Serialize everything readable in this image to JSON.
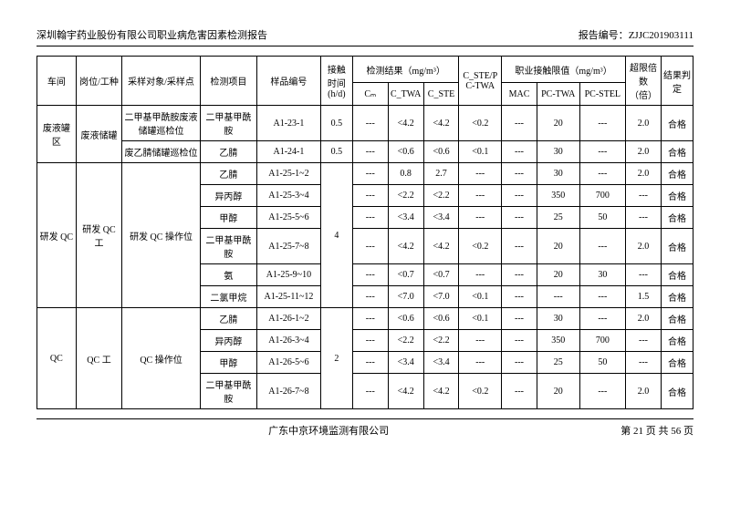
{
  "header": {
    "title": "深圳翰宇药业股份有限公司职业病危害因素检测报告",
    "report_no_label": "报告编号：",
    "report_no": "ZJJC201903111"
  },
  "footer": {
    "center": "广东中京环境监测有限公司",
    "right": "第 21 页 共 56 页"
  },
  "columns": {
    "c1": "车间",
    "c2": "岗位/工种",
    "c3": "采样对象/采样点",
    "c4": "检测项目",
    "c5": "样品编号",
    "c6": "接触时间(h/d)",
    "g1": "检测结果（mg/m³）",
    "g1a": "Cₘ",
    "g1b": "C_TWA",
    "g1c": "C_STE",
    "c8": "C_STE/PC-TWA",
    "g2": "职业接触限值（mg/m³）",
    "g2a": "MAC",
    "g2b": "PC-TWA",
    "g2c": "PC-STEL",
    "c10": "超限倍数（倍）",
    "c11": "结果判定"
  },
  "groups": [
    {
      "workshop": "废液罐区",
      "post": "废液储罐",
      "rows": [
        {
          "obj": "二甲基甲酰胺废液储罐巡检位",
          "item": "二甲基甲酰胺",
          "code": "A1-23-1",
          "time": "0.5",
          "cm": "---",
          "ctwa": "<4.2",
          "cste": "<4.2",
          "ratio": "<0.2",
          "mac": "---",
          "pctwa": "20",
          "pcstel": "---",
          "mult": "2.0",
          "res": "合格"
        },
        {
          "obj": "废乙腈储罐巡检位",
          "item": "乙腈",
          "code": "A1-24-1",
          "time": "0.5",
          "cm": "---",
          "ctwa": "<0.6",
          "cste": "<0.6",
          "ratio": "<0.1",
          "mac": "---",
          "pctwa": "30",
          "pcstel": "---",
          "mult": "2.0",
          "res": "合格"
        }
      ]
    },
    {
      "workshop": "研发 QC",
      "post": "研发 QC 工",
      "obj": "研发 QC 操作位",
      "time": "4",
      "rows": [
        {
          "item": "乙腈",
          "code": "A1-25-1~2",
          "cm": "---",
          "ctwa": "0.8",
          "cste": "2.7",
          "ratio": "---",
          "mac": "---",
          "pctwa": "30",
          "pcstel": "---",
          "mult": "2.0",
          "res": "合格"
        },
        {
          "item": "异丙醇",
          "code": "A1-25-3~4",
          "cm": "---",
          "ctwa": "<2.2",
          "cste": "<2.2",
          "ratio": "---",
          "mac": "---",
          "pctwa": "350",
          "pcstel": "700",
          "mult": "---",
          "res": "合格"
        },
        {
          "item": "甲醇",
          "code": "A1-25-5~6",
          "cm": "---",
          "ctwa": "<3.4",
          "cste": "<3.4",
          "ratio": "---",
          "mac": "---",
          "pctwa": "25",
          "pcstel": "50",
          "mult": "---",
          "res": "合格"
        },
        {
          "item": "二甲基甲酰胺",
          "code": "A1-25-7~8",
          "cm": "---",
          "ctwa": "<4.2",
          "cste": "<4.2",
          "ratio": "<0.2",
          "mac": "---",
          "pctwa": "20",
          "pcstel": "---",
          "mult": "2.0",
          "res": "合格"
        },
        {
          "item": "氨",
          "code": "A1-25-9~10",
          "cm": "---",
          "ctwa": "<0.7",
          "cste": "<0.7",
          "ratio": "---",
          "mac": "---",
          "pctwa": "20",
          "pcstel": "30",
          "mult": "---",
          "res": "合格"
        },
        {
          "item": "二氯甲烷",
          "code": "A1-25-11~12",
          "cm": "---",
          "ctwa": "<7.0",
          "cste": "<7.0",
          "ratio": "<0.1",
          "mac": "---",
          "pctwa": "---",
          "pcstel": "---",
          "mult": "1.5",
          "res": "合格"
        }
      ]
    },
    {
      "workshop": "QC",
      "post": "QC 工",
      "obj": "QC 操作位",
      "time": "2",
      "rows": [
        {
          "item": "乙腈",
          "code": "A1-26-1~2",
          "cm": "---",
          "ctwa": "<0.6",
          "cste": "<0.6",
          "ratio": "<0.1",
          "mac": "---",
          "pctwa": "30",
          "pcstel": "---",
          "mult": "2.0",
          "res": "合格"
        },
        {
          "item": "异丙醇",
          "code": "A1-26-3~4",
          "cm": "---",
          "ctwa": "<2.2",
          "cste": "<2.2",
          "ratio": "---",
          "mac": "---",
          "pctwa": "350",
          "pcstel": "700",
          "mult": "---",
          "res": "合格"
        },
        {
          "item": "甲醇",
          "code": "A1-26-5~6",
          "cm": "---",
          "ctwa": "<3.4",
          "cste": "<3.4",
          "ratio": "---",
          "mac": "---",
          "pctwa": "25",
          "pcstel": "50",
          "mult": "---",
          "res": "合格"
        },
        {
          "item": "二甲基甲酰胺",
          "code": "A1-26-7~8",
          "cm": "---",
          "ctwa": "<4.2",
          "cste": "<4.2",
          "ratio": "<0.2",
          "mac": "---",
          "pctwa": "20",
          "pcstel": "---",
          "mult": "2.0",
          "res": "合格"
        }
      ]
    }
  ]
}
